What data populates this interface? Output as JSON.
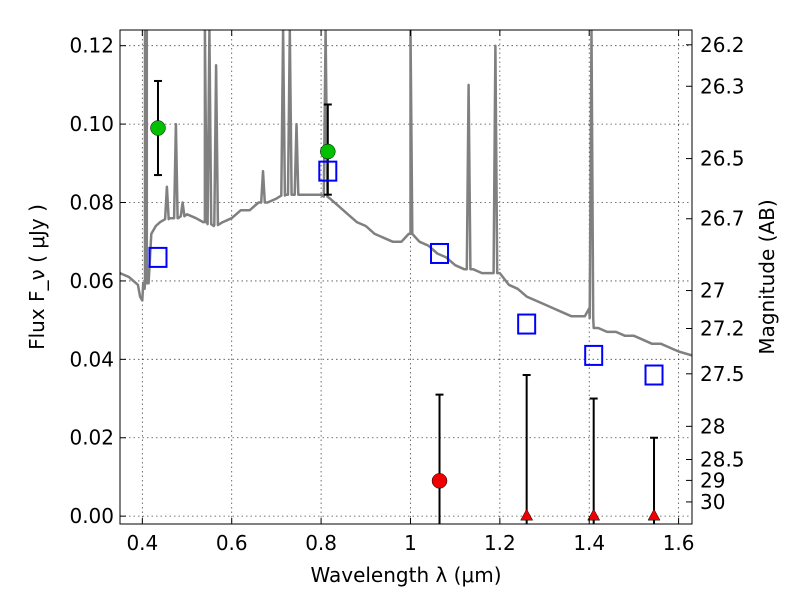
{
  "chart_data": {
    "type": "scatter",
    "title": "",
    "xlabel": "Wavelength  λ (μm)",
    "ylabel": "Flux  F_ν  ( μJy )",
    "ylabel_right": "Magnitude (AB)",
    "xlim": [
      0.35,
      1.63
    ],
    "ylim": [
      -0.002,
      0.124
    ],
    "grid": true,
    "x_ticks": [
      0.4,
      0.6,
      0.8,
      1.0,
      1.2,
      1.4,
      1.6
    ],
    "x_tick_labels": [
      "0.4",
      "0.6",
      "0.8",
      "1",
      "1.2",
      "1.4",
      "1.6"
    ],
    "y_ticks": [
      0.0,
      0.02,
      0.04,
      0.06,
      0.08,
      0.1,
      0.12
    ],
    "y_tick_labels": [
      "0.00",
      "0.02",
      "0.04",
      "0.06",
      "0.08",
      "0.10",
      "0.12"
    ],
    "right_ticks": [
      "26.2",
      "26.3",
      "26.5",
      "26.7",
      "27",
      "27.2",
      "27.5",
      "28",
      "28.5",
      "29",
      "30"
    ],
    "colors": {
      "model": "#808080",
      "detection": "#00c000",
      "upper_limit": "#ee0000",
      "model_band": "#0000ff",
      "errorbar": "#000000"
    },
    "series": [
      {
        "type": "line",
        "role": "model_spectrum",
        "points": [
          [
            0.35,
            0.062
          ],
          [
            0.37,
            0.061
          ],
          [
            0.39,
            0.059
          ],
          [
            0.395,
            0.056
          ],
          [
            0.4,
            0.055
          ],
          [
            0.405,
            0.058
          ],
          [
            0.41,
            0.065
          ],
          [
            0.42,
            0.072
          ],
          [
            0.43,
            0.074
          ],
          [
            0.44,
            0.075
          ],
          [
            0.46,
            0.076
          ],
          [
            0.48,
            0.076
          ],
          [
            0.5,
            0.077
          ],
          [
            0.52,
            0.076
          ],
          [
            0.54,
            0.075
          ],
          [
            0.56,
            0.074
          ],
          [
            0.58,
            0.075
          ],
          [
            0.6,
            0.076
          ],
          [
            0.62,
            0.078
          ],
          [
            0.64,
            0.078
          ],
          [
            0.66,
            0.08
          ],
          [
            0.68,
            0.08
          ],
          [
            0.7,
            0.081
          ],
          [
            0.72,
            0.082
          ],
          [
            0.74,
            0.082
          ],
          [
            0.76,
            0.082
          ],
          [
            0.78,
            0.082
          ],
          [
            0.8,
            0.082
          ],
          [
            0.82,
            0.081
          ],
          [
            0.84,
            0.079
          ],
          [
            0.86,
            0.077
          ],
          [
            0.88,
            0.075
          ],
          [
            0.9,
            0.074
          ],
          [
            0.92,
            0.072
          ],
          [
            0.94,
            0.071
          ],
          [
            0.96,
            0.07
          ],
          [
            0.98,
            0.07
          ],
          [
            1.0,
            0.072
          ],
          [
            1.02,
            0.07
          ],
          [
            1.04,
            0.069
          ],
          [
            1.06,
            0.067
          ],
          [
            1.08,
            0.066
          ],
          [
            1.1,
            0.064
          ],
          [
            1.12,
            0.063
          ],
          [
            1.14,
            0.063
          ],
          [
            1.16,
            0.062
          ],
          [
            1.18,
            0.062
          ],
          [
            1.2,
            0.062
          ],
          [
            1.22,
            0.059
          ],
          [
            1.24,
            0.058
          ],
          [
            1.26,
            0.056
          ],
          [
            1.28,
            0.055
          ],
          [
            1.3,
            0.054
          ],
          [
            1.32,
            0.053
          ],
          [
            1.34,
            0.052
          ],
          [
            1.36,
            0.051
          ],
          [
            1.38,
            0.051
          ],
          [
            1.39,
            0.051
          ],
          [
            1.4,
            0.053
          ],
          [
            1.41,
            0.048
          ],
          [
            1.42,
            0.048
          ],
          [
            1.44,
            0.047
          ],
          [
            1.46,
            0.047
          ],
          [
            1.48,
            0.046
          ],
          [
            1.5,
            0.046
          ],
          [
            1.52,
            0.045
          ],
          [
            1.54,
            0.044
          ],
          [
            1.56,
            0.044
          ],
          [
            1.58,
            0.043
          ],
          [
            1.6,
            0.042
          ],
          [
            1.63,
            0.041
          ]
        ],
        "emission_lines": [
          [
            0.406,
            0.124
          ],
          [
            0.41,
            0.124
          ],
          [
            0.455,
            0.084
          ],
          [
            0.475,
            0.1
          ],
          [
            0.49,
            0.08
          ],
          [
            0.54,
            0.124
          ],
          [
            0.55,
            0.124
          ],
          [
            0.565,
            0.115
          ],
          [
            0.67,
            0.088
          ],
          [
            0.715,
            0.124
          ],
          [
            0.73,
            0.124
          ],
          [
            0.745,
            0.1
          ],
          [
            0.81,
            0.124
          ],
          [
            1.0,
            0.124
          ],
          [
            1.13,
            0.11
          ],
          [
            1.19,
            0.12
          ],
          [
            1.405,
            0.124
          ]
        ]
      },
      {
        "type": "scatter",
        "role": "detections",
        "marker": "circle",
        "points": [
          {
            "x": 0.435,
            "y": 0.099,
            "err_low": 0.087,
            "err_high": 0.111
          },
          {
            "x": 0.815,
            "y": 0.093,
            "err_low": 0.082,
            "err_high": 0.105
          }
        ]
      },
      {
        "type": "scatter",
        "role": "upper_limits",
        "points": [
          {
            "x": 1.065,
            "y": 0.009,
            "err_low": -0.002,
            "err_high": 0.031,
            "marker": "circle"
          },
          {
            "x": 1.26,
            "y": 0.0,
            "err_low": -0.002,
            "err_high": 0.036,
            "marker": "triangle"
          },
          {
            "x": 1.41,
            "y": 0.0,
            "err_low": -0.002,
            "err_high": 0.03,
            "marker": "triangle"
          },
          {
            "x": 1.545,
            "y": 0.0,
            "err_low": -0.002,
            "err_high": 0.02,
            "marker": "triangle"
          }
        ]
      },
      {
        "type": "scatter",
        "role": "model_band_flux",
        "marker": "open-square",
        "points": [
          {
            "x": 0.435,
            "y": 0.066
          },
          {
            "x": 0.815,
            "y": 0.088
          },
          {
            "x": 1.065,
            "y": 0.067
          },
          {
            "x": 1.26,
            "y": 0.049
          },
          {
            "x": 1.41,
            "y": 0.041
          },
          {
            "x": 1.545,
            "y": 0.036
          }
        ]
      }
    ]
  }
}
